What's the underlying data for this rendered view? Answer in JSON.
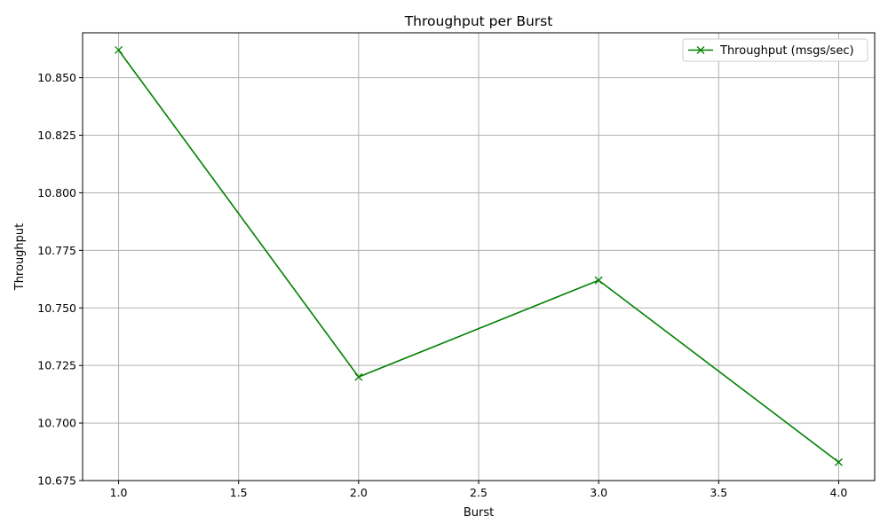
{
  "chart_data": {
    "type": "line",
    "title": "Throughput per Burst",
    "xlabel": "Burst",
    "ylabel": "Throughput",
    "xlim": [
      0.85,
      4.15
    ],
    "ylim": [
      10.675,
      10.8695
    ],
    "x_ticks": [
      1.0,
      1.5,
      2.0,
      2.5,
      3.0,
      3.5,
      4.0
    ],
    "y_ticks": [
      10.675,
      10.7,
      10.725,
      10.75,
      10.775,
      10.8,
      10.825,
      10.85
    ],
    "grid": true,
    "legend_position": "top-right",
    "series": [
      {
        "name": "Throughput (msgs/sec)",
        "color": "#008000",
        "marker": "x",
        "x": [
          1,
          2,
          3,
          4
        ],
        "y": [
          10.862,
          10.72,
          10.762,
          10.683
        ]
      }
    ]
  }
}
